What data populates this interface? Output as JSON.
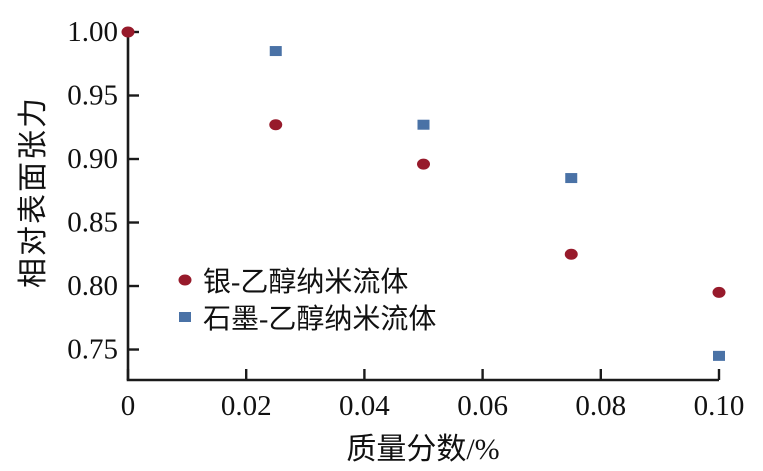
{
  "chart_data": {
    "type": "scatter",
    "title": "",
    "xlabel": "质量分数/%",
    "ylabel": "相对表面张力",
    "xlim": [
      0,
      0.1
    ],
    "ylim": [
      0.726,
      1.0
    ],
    "grid": false,
    "legend_position": "inside-left-middle",
    "axis_color": "#1a1a1a",
    "background_color": "#ffffff",
    "x_ticks": [
      {
        "value": 0,
        "label": "0"
      },
      {
        "value": 0.02,
        "label": "0.02"
      },
      {
        "value": 0.04,
        "label": "0.04"
      },
      {
        "value": 0.06,
        "label": "0.06"
      },
      {
        "value": 0.08,
        "label": "0.08"
      },
      {
        "value": 0.1,
        "label": "0.10"
      }
    ],
    "y_ticks": [
      {
        "value": 1.0,
        "label": "1.00"
      },
      {
        "value": 0.95,
        "label": "0.95"
      },
      {
        "value": 0.9,
        "label": "0.90"
      },
      {
        "value": 0.85,
        "label": "0.85"
      },
      {
        "value": 0.8,
        "label": "0.80"
      },
      {
        "value": 0.75,
        "label": "0.75"
      }
    ],
    "series": [
      {
        "name": "银-乙醇纳米流体",
        "marker": "circle",
        "color": "#971a2b",
        "points": [
          [
            0,
            1.0
          ],
          [
            0.025,
            0.927
          ],
          [
            0.05,
            0.896
          ],
          [
            0.075,
            0.825
          ],
          [
            0.1,
            0.795
          ]
        ]
      },
      {
        "name": "石墨-乙醇纳米流体",
        "marker": "square",
        "color": "#4a72a6",
        "points": [
          [
            0.025,
            0.985
          ],
          [
            0.05,
            0.927
          ],
          [
            0.075,
            0.885
          ],
          [
            0.1,
            0.745
          ]
        ]
      }
    ]
  }
}
